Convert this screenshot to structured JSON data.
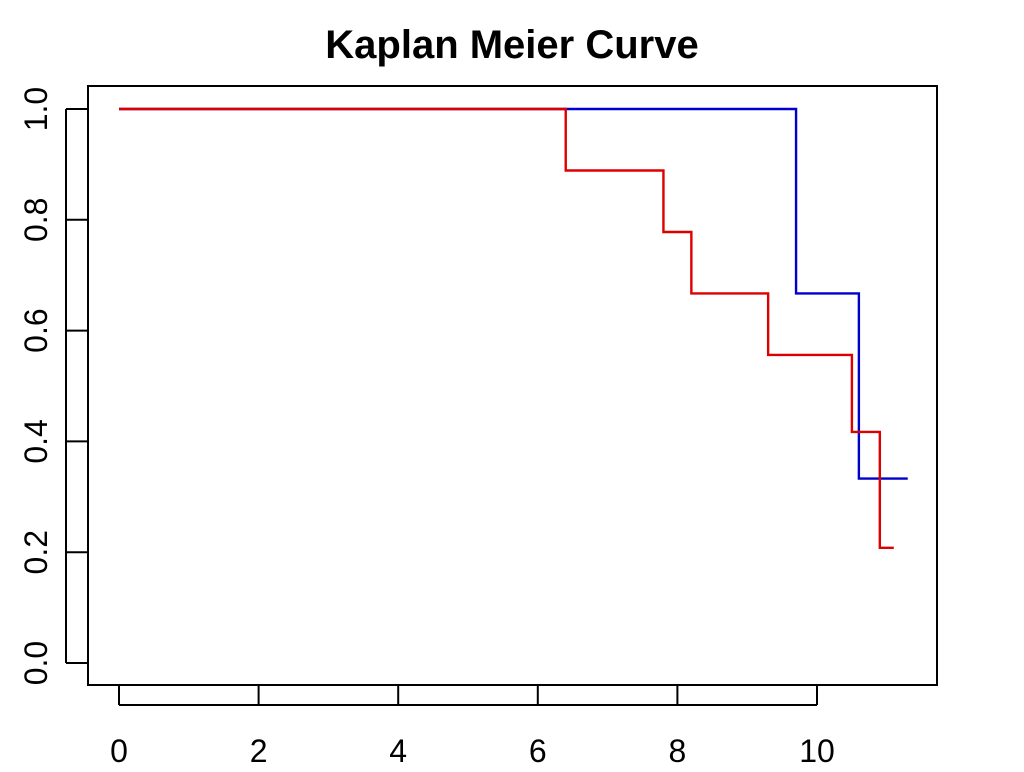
{
  "chart_data": {
    "type": "line",
    "subtype": "step",
    "title": "Kaplan Meier Curve",
    "xlabel": "",
    "ylabel": "",
    "xlim": [
      0,
      11.3
    ],
    "ylim": [
      0,
      1.0
    ],
    "x_ticks": [
      0,
      2,
      4,
      6,
      8,
      10
    ],
    "x_tick_labels": [
      "0",
      "2",
      "4",
      "6",
      "8",
      "10"
    ],
    "y_ticks": [
      0.0,
      0.2,
      0.4,
      0.6,
      0.8,
      1.0
    ],
    "y_tick_labels": [
      "0.0",
      "0.2",
      "0.4",
      "0.6",
      "0.8",
      "1.0"
    ],
    "grid": false,
    "legend": "none",
    "series": [
      {
        "color": "#0000cc",
        "points": [
          {
            "x": 0,
            "y": 1.0
          },
          {
            "x": 9.7,
            "y": 0.667
          },
          {
            "x": 10.6,
            "y": 0.333
          },
          {
            "x": 11.3,
            "y": 0.333
          }
        ]
      },
      {
        "color": "#dd0000",
        "points": [
          {
            "x": 0,
            "y": 1.0
          },
          {
            "x": 6.4,
            "y": 0.889
          },
          {
            "x": 7.8,
            "y": 0.778
          },
          {
            "x": 8.2,
            "y": 0.667
          },
          {
            "x": 9.3,
            "y": 0.556
          },
          {
            "x": 10.5,
            "y": 0.417
          },
          {
            "x": 10.9,
            "y": 0.208
          },
          {
            "x": 11.1,
            "y": 0.208
          }
        ]
      }
    ]
  }
}
